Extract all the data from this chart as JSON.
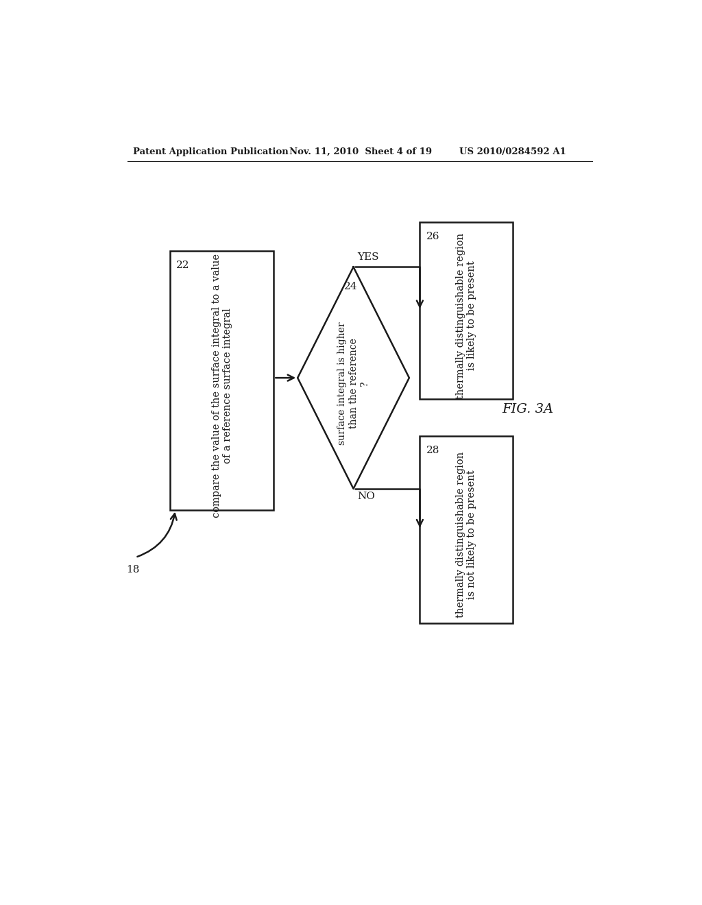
{
  "header_left": "Patent Application Publication",
  "header_mid": "Nov. 11, 2010  Sheet 4 of 19",
  "header_right": "US 2010/0284592 A1",
  "fig_label": "FIG. 3A",
  "arrow_label": "18",
  "box1_label": "22",
  "box1_text": "compare the value of the surface integral to a value\nof a reference surface integral",
  "diamond_label": "24",
  "diamond_text": "surface integral is higher\nthan the reference\n?",
  "box2_label": "26",
  "box2_text": "thermally distinguishable region\nis likely to be present",
  "box3_label": "28",
  "box3_text": "thermally distinguishable region\nis not likely to be present",
  "yes_label": "YES",
  "no_label": "NO",
  "bg_color": "#ffffff",
  "box_color": "#1a1a1a",
  "text_color": "#1a1a1a",
  "linewidth": 1.8,
  "header_fontsize": 9.5,
  "body_fontsize": 11,
  "label_fontsize": 11,
  "fig_fontsize": 14
}
